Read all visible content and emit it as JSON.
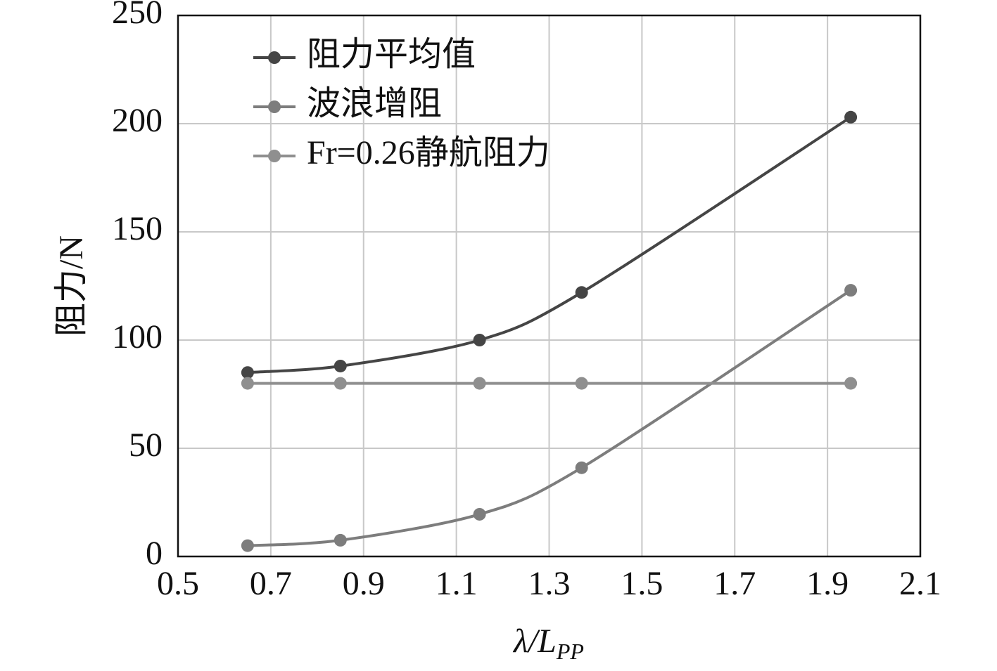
{
  "chart_data": {
    "type": "line",
    "x": [
      0.65,
      0.85,
      1.15,
      1.37,
      1.95
    ],
    "series": [
      {
        "name": "阻力平均值",
        "color": "#454545",
        "values": [
          85,
          88,
          100,
          122,
          203
        ]
      },
      {
        "name": "波浪增阻",
        "color": "#7d7d7d",
        "values": [
          5,
          7.5,
          19.5,
          41,
          123
        ]
      },
      {
        "name": "Fr=0.26静航阻力",
        "color": "#8f8f8f",
        "values": [
          80,
          80,
          80,
          80,
          80
        ]
      }
    ],
    "xlim": [
      0.5,
      2.1
    ],
    "xticks": [
      0.5,
      0.7,
      0.9,
      1.1,
      1.3,
      1.5,
      1.7,
      1.9,
      2.1
    ],
    "ylim": [
      0,
      250
    ],
    "yticks": [
      0,
      50,
      100,
      150,
      200,
      250
    ],
    "xlabel": {
      "text": "λ/L",
      "sub": "PP"
    },
    "ylabel": "阻力/N",
    "grid": true,
    "legend": "upper-left"
  }
}
